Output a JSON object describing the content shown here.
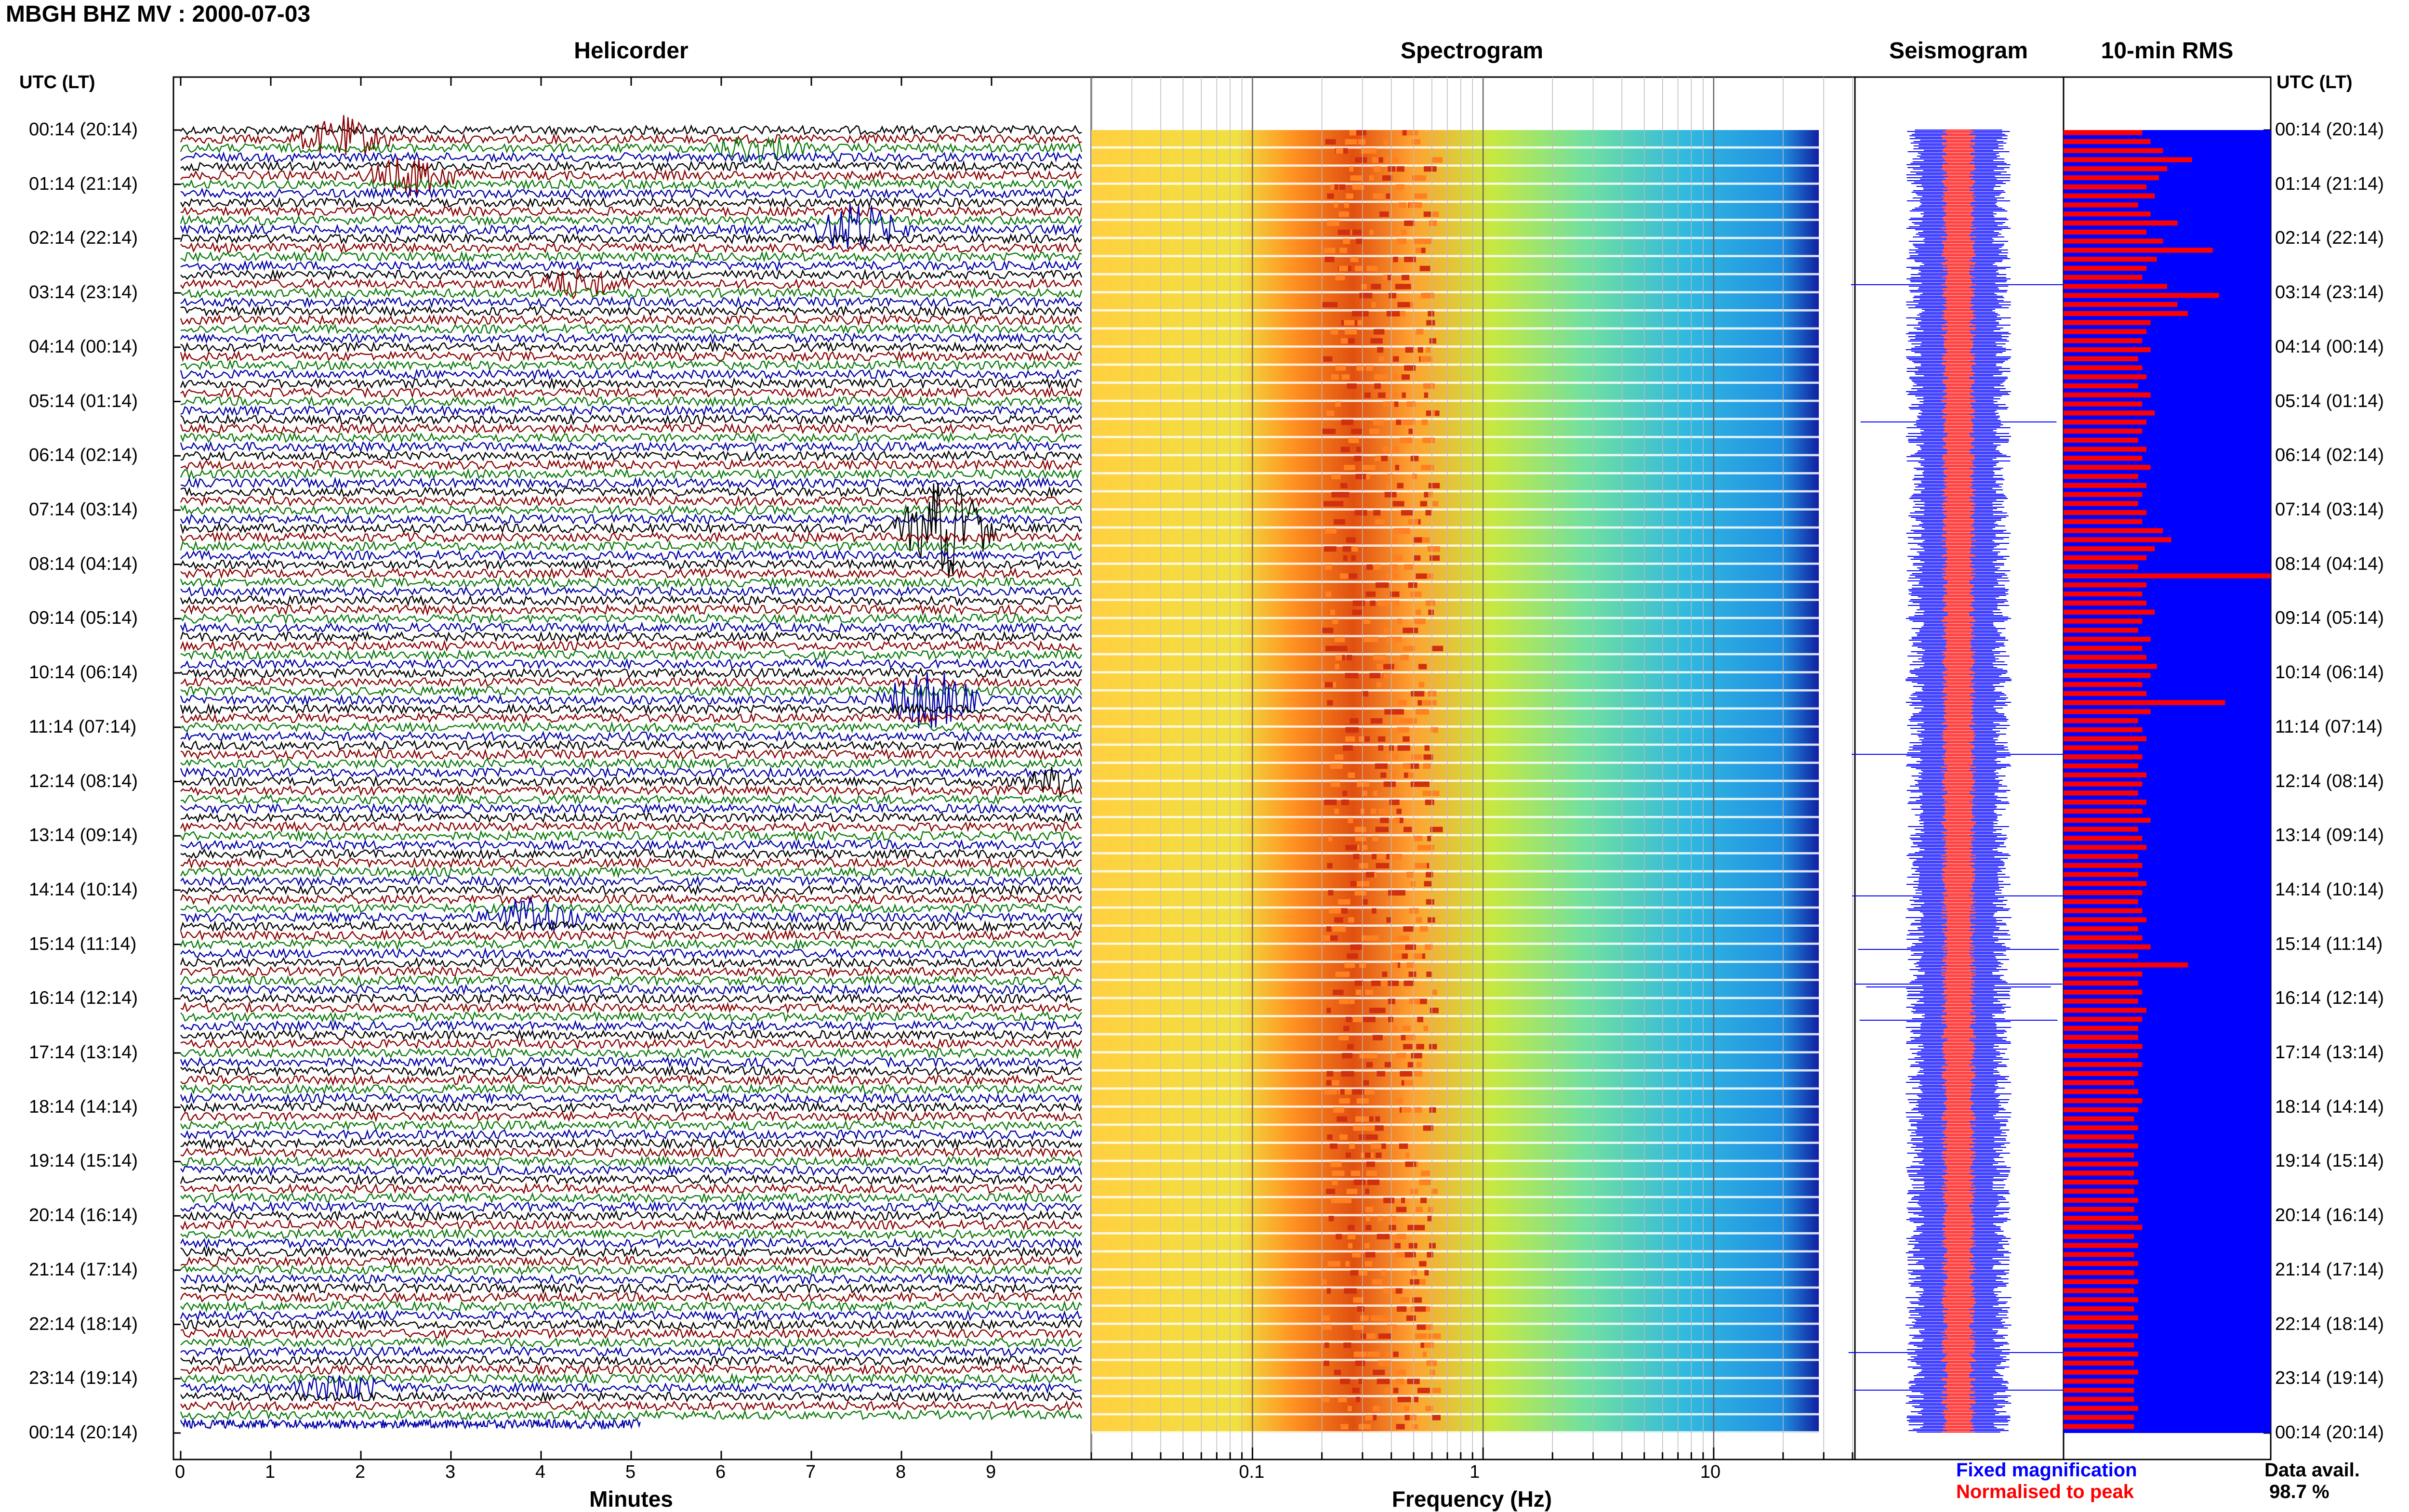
{
  "header": {
    "title": "MBGH BHZ MV : 2000-07-03"
  },
  "panels": {
    "helicorder": "Helicorder",
    "spectrogram": "Spectrogram",
    "seismogram": "Seismogram",
    "rms": "10-min RMS"
  },
  "axis_unit_left": "UTC (LT)",
  "axis_unit_right": "UTC (LT)",
  "time_labels": [
    "00:14 (20:14)",
    "01:14 (21:14)",
    "02:14 (22:14)",
    "03:14 (23:14)",
    "04:14 (00:14)",
    "05:14 (01:14)",
    "06:14 (02:14)",
    "07:14 (03:14)",
    "08:14 (04:14)",
    "09:14 (05:14)",
    "10:14 (06:14)",
    "11:14 (07:14)",
    "12:14 (08:14)",
    "13:14 (09:14)",
    "14:14 (10:14)",
    "15:14 (11:14)",
    "16:14 (12:14)",
    "17:14 (13:14)",
    "18:14 (14:14)",
    "19:14 (15:14)",
    "20:14 (16:14)",
    "21:14 (17:14)",
    "22:14 (18:14)",
    "23:14 (19:14)",
    "00:14 (20:14)"
  ],
  "helicorder_axis": {
    "label": "Minutes",
    "ticks": [
      "0",
      "1",
      "2",
      "3",
      "4",
      "5",
      "6",
      "7",
      "8",
      "9"
    ]
  },
  "spectrogram_axis": {
    "label": "Frequency (Hz)",
    "ticks": [
      "0.1",
      "1",
      "10"
    ]
  },
  "legend": {
    "fixed": "Fixed magnification",
    "normalised": "Normalised to peak"
  },
  "availability": {
    "label": "Data avail.",
    "value": "98.7 %"
  },
  "colors": {
    "trace_cycle": [
      "#000000",
      "#8b0000",
      "#0a7a0a",
      "#0000aa"
    ],
    "fixed": "#0000ff",
    "normalised": "#ff0000",
    "spectrum_low": "#ffe060",
    "spectrum_peak": "#e05010",
    "spectrum_high": "#30b8e0"
  },
  "chart_data": [
    {
      "type": "line",
      "panel": "helicorder",
      "xlabel": "Minutes",
      "xlim": [
        0,
        10
      ],
      "ylim": [
        "00:14",
        "00:14"
      ],
      "note_rows": 144,
      "events": [
        {
          "row": 1,
          "minute": 1.8,
          "amp": 3
        },
        {
          "row": 2,
          "minute": 6.4,
          "amp": 2
        },
        {
          "row": 5,
          "minute": 2.6,
          "amp": 3
        },
        {
          "row": 11,
          "minute": 7.5,
          "amp": 4
        },
        {
          "row": 17,
          "minute": 4.4,
          "amp": 2
        },
        {
          "row": 44,
          "minute": 8.5,
          "amp": 8
        },
        {
          "row": 63,
          "minute": 8.3,
          "amp": 5
        },
        {
          "row": 72,
          "minute": 9.8,
          "amp": 2
        },
        {
          "row": 87,
          "minute": 3.9,
          "amp": 3
        },
        {
          "row": 139,
          "minute": 1.8,
          "amp": 2
        }
      ]
    },
    {
      "type": "heatmap",
      "panel": "spectrogram",
      "xlabel": "Frequency (Hz)",
      "x_scale": "log",
      "xlim": [
        0.02,
        40
      ],
      "peak_band_hz": [
        0.2,
        0.6
      ]
    },
    {
      "type": "line",
      "panel": "seismogram",
      "series": [
        {
          "name": "Fixed magnification",
          "color": "#0000ff"
        },
        {
          "name": "Normalised to peak",
          "color": "#ff0000"
        }
      ]
    },
    {
      "type": "bar",
      "panel": "rms",
      "title": "10-min RMS",
      "series": [
        {
          "name": "Fixed magnification",
          "color": "#0000ff",
          "values": [
            1.0
          ]
        },
        {
          "name": "Normalised to peak",
          "color": "#ff0000",
          "values": [
            0.38,
            0.42,
            0.48,
            0.62,
            0.5,
            0.46,
            0.4,
            0.44,
            0.36,
            0.42,
            0.55,
            0.4,
            0.48,
            0.72,
            0.45,
            0.4,
            0.38,
            0.5,
            0.75,
            0.55,
            0.6,
            0.42,
            0.4,
            0.38,
            0.42,
            0.36,
            0.38,
            0.4,
            0.36,
            0.42,
            0.38,
            0.44,
            0.4,
            0.38,
            0.36,
            0.4,
            0.38,
            0.42,
            0.36,
            0.4,
            0.38,
            0.36,
            0.4,
            0.38,
            0.48,
            0.52,
            0.44,
            0.4,
            0.36,
            1.0,
            0.4,
            0.38,
            0.4,
            0.44,
            0.38,
            0.36,
            0.42,
            0.38,
            0.4,
            0.45,
            0.42,
            0.38,
            0.4,
            0.78,
            0.42,
            0.36,
            0.38,
            0.4,
            0.36,
            0.38,
            0.36,
            0.4,
            0.38,
            0.36,
            0.4,
            0.38,
            0.42,
            0.36,
            0.38,
            0.4,
            0.36,
            0.38,
            0.36,
            0.4,
            0.38,
            0.36,
            0.38,
            0.4,
            0.36,
            0.38,
            0.42,
            0.36,
            0.6,
            0.38,
            0.36,
            0.38,
            0.36,
            0.4,
            0.38,
            0.36,
            0.36,
            0.38,
            0.36,
            0.38,
            0.36,
            0.34,
            0.36,
            0.38,
            0.36,
            0.34,
            0.36,
            0.34,
            0.36,
            0.34,
            0.36,
            0.34,
            0.36,
            0.34,
            0.36,
            0.34,
            0.36,
            0.38,
            0.34,
            0.36,
            0.34,
            0.36,
            0.34,
            0.36,
            0.34,
            0.36,
            0.34,
            0.36,
            0.34,
            0.36,
            0.34,
            0.36,
            0.34,
            0.36,
            0.34,
            0.34,
            0.34,
            0.36,
            0.34,
            0.34
          ]
        }
      ]
    }
  ]
}
